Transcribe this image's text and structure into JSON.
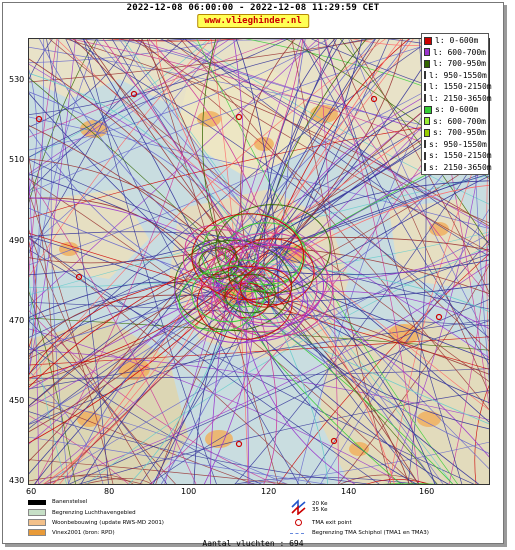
{
  "header": {
    "title": "2022-12-08 06:00:00 - 2022-12-08 11:29:59 CET",
    "site": "www.vlieghinder.nl"
  },
  "axes": {
    "y_ticks": [
      "530",
      "510",
      "490",
      "470",
      "450",
      "430"
    ],
    "x_ticks": [
      "60",
      "80",
      "100",
      "120",
      "140",
      "160"
    ]
  },
  "legend": [
    {
      "label": "l: 0-600m",
      "color": "#cc0000"
    },
    {
      "label": "l: 600-700m",
      "color": "#9933cc"
    },
    {
      "label": "l: 700-950m",
      "color": "#336600"
    },
    {
      "label": "l: 950-1550m",
      "color": "#cc3399"
    },
    {
      "label": "l: 1550-2150m",
      "color": "#ff6666"
    },
    {
      "label": "l: 2150-3650m",
      "color": "#993333"
    },
    {
      "label": "s: 0-600m",
      "color": "#33cc33"
    },
    {
      "label": "s: 600-700m",
      "color": "#99ee33"
    },
    {
      "label": "s: 700-950m",
      "color": "#99cc00"
    },
    {
      "label": "s: 950-1550m",
      "color": "#66cccc"
    },
    {
      "label": "s: 1550-2150m",
      "color": "#6666cc"
    },
    {
      "label": "s: 2150-3650m",
      "color": "#333399"
    }
  ],
  "bottom_legend": {
    "runway": "Banenstelsel",
    "airport_boundary": "Begrenzing Luchthavengebied",
    "housing": "Woonbebouwing (update RWS-MD 2001)",
    "vinex": "Vinex2001 (bron: RPD)",
    "ke_labels": [
      "20 Ke",
      "35 Ke"
    ],
    "tma_exit": "TMA exit point",
    "tma_boundary": "Begrenzing TMA Schiphol  (TMA1 en TMA3)"
  },
  "footer": {
    "count_label": "Aantal vluchten : 694"
  }
}
